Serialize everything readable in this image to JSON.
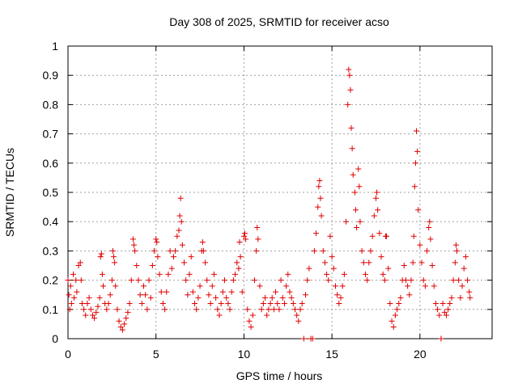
{
  "chart_data": {
    "type": "scatter",
    "title": "Day 308 of 2025, SRMTID for receiver acso",
    "xlabel": "GPS time / hours",
    "ylabel": "SRMTID / TECUs",
    "xlim": [
      0,
      24.1
    ],
    "ylim": [
      0,
      1
    ],
    "grid": true,
    "marker": "+",
    "color": "#e00000",
    "x_ticks": [
      0,
      5,
      10,
      15,
      20
    ],
    "x_tick_labels": [
      "0",
      "5",
      "10",
      "15",
      "20"
    ],
    "y_ticks": [
      0,
      0.1,
      0.2,
      0.3,
      0.4,
      0.5,
      0.6,
      0.7,
      0.8,
      0.9,
      1
    ],
    "y_tick_labels": [
      "0",
      "0.1",
      "0.2",
      "0.3",
      "0.4",
      "0.5",
      "0.6",
      "0.7",
      "0.8",
      "0.9",
      "1"
    ],
    "series": [
      {
        "name": "SRMTID",
        "points": [
          [
            0.0,
            0.2
          ],
          [
            0.05,
            0.15
          ],
          [
            0.1,
            0.1
          ],
          [
            0.15,
            0.18
          ],
          [
            0.2,
            0.12
          ],
          [
            0.3,
            0.22
          ],
          [
            0.35,
            0.14
          ],
          [
            0.45,
            0.2
          ],
          [
            0.5,
            0.16
          ],
          [
            0.6,
            0.25
          ],
          [
            0.7,
            0.26
          ],
          [
            0.75,
            0.2
          ],
          [
            0.8,
            0.12
          ],
          [
            0.9,
            0.1
          ],
          [
            1.0,
            0.08
          ],
          [
            1.1,
            0.12
          ],
          [
            1.2,
            0.14
          ],
          [
            1.3,
            0.1
          ],
          [
            1.4,
            0.08
          ],
          [
            1.5,
            0.07
          ],
          [
            1.6,
            0.09
          ],
          [
            1.7,
            0.11
          ],
          [
            1.8,
            0.14
          ],
          [
            1.85,
            0.28
          ],
          [
            1.9,
            0.29
          ],
          [
            1.95,
            0.22
          ],
          [
            2.0,
            0.18
          ],
          [
            2.1,
            0.12
          ],
          [
            2.2,
            0.1
          ],
          [
            2.3,
            0.12
          ],
          [
            2.4,
            0.15
          ],
          [
            2.5,
            0.2
          ],
          [
            2.55,
            0.3
          ],
          [
            2.6,
            0.28
          ],
          [
            2.65,
            0.26
          ],
          [
            2.7,
            0.18
          ],
          [
            2.8,
            0.1
          ],
          [
            2.9,
            0.06
          ],
          [
            3.0,
            0.04
          ],
          [
            3.1,
            0.03
          ],
          [
            3.2,
            0.05
          ],
          [
            3.3,
            0.07
          ],
          [
            3.4,
            0.09
          ],
          [
            3.5,
            0.12
          ],
          [
            3.6,
            0.2
          ],
          [
            3.7,
            0.34
          ],
          [
            3.75,
            0.32
          ],
          [
            3.8,
            0.3
          ],
          [
            3.9,
            0.25
          ],
          [
            4.0,
            0.2
          ],
          [
            4.1,
            0.15
          ],
          [
            4.2,
            0.12
          ],
          [
            4.3,
            0.18
          ],
          [
            4.4,
            0.15
          ],
          [
            4.5,
            0.1
          ],
          [
            4.6,
            0.2
          ],
          [
            4.7,
            0.14
          ],
          [
            4.8,
            0.25
          ],
          [
            4.9,
            0.3
          ],
          [
            5.0,
            0.34
          ],
          [
            5.05,
            0.33
          ],
          [
            5.1,
            0.28
          ],
          [
            5.2,
            0.22
          ],
          [
            5.3,
            0.16
          ],
          [
            5.4,
            0.12
          ],
          [
            5.5,
            0.1
          ],
          [
            5.6,
            0.16
          ],
          [
            5.7,
            0.22
          ],
          [
            5.8,
            0.3
          ],
          [
            5.9,
            0.24
          ],
          [
            6.0,
            0.28
          ],
          [
            6.1,
            0.3
          ],
          [
            6.2,
            0.35
          ],
          [
            6.3,
            0.37
          ],
          [
            6.35,
            0.42
          ],
          [
            6.4,
            0.48
          ],
          [
            6.45,
            0.4
          ],
          [
            6.5,
            0.32
          ],
          [
            6.6,
            0.26
          ],
          [
            6.7,
            0.2
          ],
          [
            6.8,
            0.15
          ],
          [
            6.9,
            0.22
          ],
          [
            7.0,
            0.28
          ],
          [
            7.1,
            0.16
          ],
          [
            7.2,
            0.12
          ],
          [
            7.3,
            0.1
          ],
          [
            7.4,
            0.14
          ],
          [
            7.5,
            0.18
          ],
          [
            7.6,
            0.3
          ],
          [
            7.65,
            0.33
          ],
          [
            7.7,
            0.3
          ],
          [
            7.8,
            0.26
          ],
          [
            7.9,
            0.2
          ],
          [
            8.0,
            0.15
          ],
          [
            8.1,
            0.12
          ],
          [
            8.2,
            0.18
          ],
          [
            8.3,
            0.22
          ],
          [
            8.4,
            0.14
          ],
          [
            8.5,
            0.1
          ],
          [
            8.6,
            0.08
          ],
          [
            8.7,
            0.12
          ],
          [
            8.8,
            0.16
          ],
          [
            8.9,
            0.2
          ],
          [
            9.0,
            0.14
          ],
          [
            9.1,
            0.12
          ],
          [
            9.2,
            0.1
          ],
          [
            9.3,
            0.16
          ],
          [
            9.4,
            0.2
          ],
          [
            9.5,
            0.22
          ],
          [
            9.6,
            0.26
          ],
          [
            9.7,
            0.24
          ],
          [
            9.75,
            0.33
          ],
          [
            9.8,
            0.28
          ],
          [
            9.9,
            0.16
          ],
          [
            10.0,
            0.35
          ],
          [
            10.05,
            0.36
          ],
          [
            10.1,
            0.34
          ],
          [
            10.2,
            0.1
          ],
          [
            10.3,
            0.06
          ],
          [
            10.4,
            0.04
          ],
          [
            10.5,
            0.08
          ],
          [
            10.6,
            0.2
          ],
          [
            10.7,
            0.3
          ],
          [
            10.75,
            0.38
          ],
          [
            10.8,
            0.34
          ],
          [
            10.9,
            0.18
          ],
          [
            11.0,
            0.1
          ],
          [
            11.1,
            0.12
          ],
          [
            11.2,
            0.14
          ],
          [
            11.3,
            0.08
          ],
          [
            11.4,
            0.1
          ],
          [
            11.5,
            0.12
          ],
          [
            11.6,
            0.14
          ],
          [
            11.7,
            0.1
          ],
          [
            11.8,
            0.16
          ],
          [
            11.9,
            0.12
          ],
          [
            12.0,
            0.1
          ],
          [
            12.1,
            0.2
          ],
          [
            12.2,
            0.14
          ],
          [
            12.3,
            0.12
          ],
          [
            12.4,
            0.18
          ],
          [
            12.5,
            0.22
          ],
          [
            12.6,
            0.16
          ],
          [
            12.7,
            0.14
          ],
          [
            12.8,
            0.12
          ],
          [
            12.9,
            0.1
          ],
          [
            13.0,
            0.08
          ],
          [
            13.1,
            0.06
          ],
          [
            13.2,
            0.1
          ],
          [
            13.3,
            0.12
          ],
          [
            13.4,
            0.0
          ],
          [
            13.5,
            0.15
          ],
          [
            13.6,
            0.2
          ],
          [
            13.7,
            0.24
          ],
          [
            13.8,
            0.0
          ],
          [
            13.9,
            0.0
          ],
          [
            14.0,
            0.3
          ],
          [
            14.1,
            0.36
          ],
          [
            14.2,
            0.45
          ],
          [
            14.25,
            0.52
          ],
          [
            14.3,
            0.54
          ],
          [
            14.35,
            0.48
          ],
          [
            14.4,
            0.42
          ],
          [
            14.5,
            0.3
          ],
          [
            14.6,
            0.26
          ],
          [
            14.7,
            0.22
          ],
          [
            14.8,
            0.2
          ],
          [
            14.9,
            0.35
          ],
          [
            15.0,
            0.28
          ],
          [
            15.1,
            0.24
          ],
          [
            15.2,
            0.18
          ],
          [
            15.3,
            0.15
          ],
          [
            15.4,
            0.12
          ],
          [
            15.5,
            0.14
          ],
          [
            15.6,
            0.18
          ],
          [
            15.7,
            0.22
          ],
          [
            15.8,
            0.4
          ],
          [
            15.9,
            0.8
          ],
          [
            15.95,
            0.92
          ],
          [
            16.0,
            0.9
          ],
          [
            16.05,
            0.85
          ],
          [
            16.1,
            0.72
          ],
          [
            16.15,
            0.65
          ],
          [
            16.2,
            0.56
          ],
          [
            16.3,
            0.5
          ],
          [
            16.35,
            0.44
          ],
          [
            16.4,
            0.38
          ],
          [
            16.5,
            0.58
          ],
          [
            16.55,
            0.52
          ],
          [
            16.6,
            0.4
          ],
          [
            16.7,
            0.3
          ],
          [
            16.8,
            0.26
          ],
          [
            16.9,
            0.22
          ],
          [
            17.0,
            0.2
          ],
          [
            17.1,
            0.26
          ],
          [
            17.2,
            0.3
          ],
          [
            17.3,
            0.35
          ],
          [
            17.4,
            0.42
          ],
          [
            17.5,
            0.48
          ],
          [
            17.55,
            0.5
          ],
          [
            17.6,
            0.44
          ],
          [
            17.7,
            0.36
          ],
          [
            17.8,
            0.28
          ],
          [
            17.9,
            0.22
          ],
          [
            18.0,
            0.2
          ],
          [
            18.05,
            0.35
          ],
          [
            18.1,
            0.35
          ],
          [
            18.2,
            0.24
          ],
          [
            18.3,
            0.12
          ],
          [
            18.4,
            0.06
          ],
          [
            18.5,
            0.04
          ],
          [
            18.6,
            0.08
          ],
          [
            18.7,
            0.1
          ],
          [
            18.8,
            0.12
          ],
          [
            18.9,
            0.14
          ],
          [
            19.0,
            0.2
          ],
          [
            19.1,
            0.25
          ],
          [
            19.2,
            0.2
          ],
          [
            19.3,
            0.18
          ],
          [
            19.4,
            0.15
          ],
          [
            19.5,
            0.2
          ],
          [
            19.6,
            0.26
          ],
          [
            19.65,
            0.35
          ],
          [
            19.7,
            0.52
          ],
          [
            19.75,
            0.6
          ],
          [
            19.8,
            0.71
          ],
          [
            19.85,
            0.64
          ],
          [
            19.9,
            0.44
          ],
          [
            20.0,
            0.32
          ],
          [
            20.1,
            0.26
          ],
          [
            20.2,
            0.2
          ],
          [
            20.3,
            0.18
          ],
          [
            20.4,
            0.3
          ],
          [
            20.5,
            0.38
          ],
          [
            20.55,
            0.4
          ],
          [
            20.6,
            0.34
          ],
          [
            20.7,
            0.25
          ],
          [
            20.8,
            0.18
          ],
          [
            20.9,
            0.12
          ],
          [
            21.0,
            0.1
          ],
          [
            21.1,
            0.08
          ],
          [
            21.2,
            0.0
          ],
          [
            21.3,
            0.12
          ],
          [
            21.4,
            0.09
          ],
          [
            21.5,
            0.08
          ],
          [
            21.6,
            0.1
          ],
          [
            21.7,
            0.12
          ],
          [
            21.8,
            0.14
          ],
          [
            21.9,
            0.2
          ],
          [
            22.0,
            0.26
          ],
          [
            22.05,
            0.32
          ],
          [
            22.1,
            0.3
          ],
          [
            22.2,
            0.2
          ],
          [
            22.3,
            0.14
          ],
          [
            22.4,
            0.18
          ],
          [
            22.5,
            0.24
          ],
          [
            22.6,
            0.28
          ],
          [
            22.7,
            0.2
          ],
          [
            22.8,
            0.16
          ],
          [
            22.85,
            0.14
          ]
        ]
      }
    ]
  }
}
